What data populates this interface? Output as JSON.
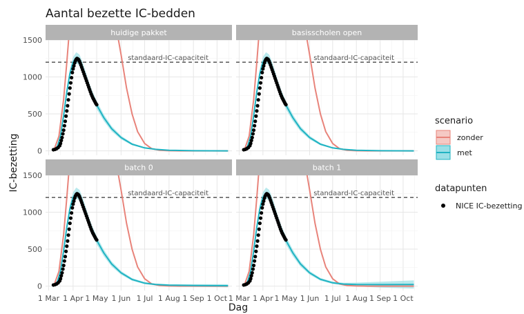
{
  "chart_data": {
    "type": "line",
    "title": "Aantal bezette IC-bedden",
    "xlabel": "Dag",
    "ylabel": "IC-bezetting",
    "xlim": [
      "2020-02-26",
      "2020-10-20"
    ],
    "ylim": [
      -60,
      1500
    ],
    "x_ticks": [
      {
        "date": "2020-03-01",
        "label": "1 Mar"
      },
      {
        "date": "2020-04-01",
        "label": "1 Apr"
      },
      {
        "date": "2020-05-01",
        "label": "1 May"
      },
      {
        "date": "2020-06-01",
        "label": "1 Jun"
      },
      {
        "date": "2020-07-01",
        "label": "1 Jul"
      },
      {
        "date": "2020-08-01",
        "label": "1 Aug"
      },
      {
        "date": "2020-09-01",
        "label": "1 Sep"
      },
      {
        "date": "2020-10-01",
        "label": "1 Oct"
      }
    ],
    "y_ticks": [
      0,
      500,
      1000,
      1500
    ],
    "grid": true,
    "reference_line": {
      "y": 1200,
      "label": "standaard-IC-capaciteit",
      "style": "dashed"
    },
    "legend": {
      "position": "right",
      "scenario_title": "scenario",
      "scenario_items": [
        {
          "name": "zonder",
          "color": "#E8837A"
        },
        {
          "name": "met",
          "color": "#1FB3C2"
        }
      ],
      "points_title": "datapunten",
      "points_items": [
        {
          "name": "NICE IC-bezetting",
          "color": "#000000"
        }
      ]
    },
    "colors": {
      "zonder": "#E8837A",
      "met": "#1FB3C2",
      "band": "#9ADFE6",
      "strip": "#B3B3B3",
      "grid": "#E6E6E6"
    },
    "panels": [
      {
        "title": "huidige pakket",
        "met": [
          [
            "2020-03-08",
            20
          ],
          [
            "2020-03-12",
            60
          ],
          [
            "2020-03-16",
            200
          ],
          [
            "2020-03-20",
            480
          ],
          [
            "2020-03-24",
            800
          ],
          [
            "2020-03-28",
            1050
          ],
          [
            "2020-04-01",
            1200
          ],
          [
            "2020-04-05",
            1260
          ],
          [
            "2020-04-09",
            1230
          ],
          [
            "2020-04-13",
            1130
          ],
          [
            "2020-04-17",
            1000
          ],
          [
            "2020-04-21",
            870
          ],
          [
            "2020-04-25",
            760
          ],
          [
            "2020-05-01",
            620
          ],
          [
            "2020-05-10",
            450
          ],
          [
            "2020-05-20",
            300
          ],
          [
            "2020-06-01",
            180
          ],
          [
            "2020-06-15",
            90
          ],
          [
            "2020-07-01",
            40
          ],
          [
            "2020-07-15",
            20
          ],
          [
            "2020-08-01",
            8
          ],
          [
            "2020-09-01",
            2
          ],
          [
            "2020-10-15",
            0
          ]
        ],
        "band_half_width": [
          10,
          15,
          30,
          40,
          50,
          60,
          70,
          75,
          75,
          75,
          70,
          65,
          60,
          55,
          45,
          35,
          25,
          15,
          10,
          6,
          3,
          2,
          2
        ],
        "zonder": [
          [
            "2020-03-08",
            20
          ],
          [
            "2020-03-14",
            200
          ],
          [
            "2020-03-20",
            700
          ],
          [
            "2020-03-24",
            1200
          ],
          [
            "2020-03-27",
            1600
          ],
          [
            "2020-05-27",
            1600
          ],
          [
            "2020-06-01",
            1300
          ],
          [
            "2020-06-08",
            850
          ],
          [
            "2020-06-15",
            500
          ],
          [
            "2020-06-22",
            260
          ],
          [
            "2020-07-01",
            100
          ],
          [
            "2020-07-10",
            30
          ],
          [
            "2020-07-20",
            8
          ],
          [
            "2020-08-01",
            2
          ],
          [
            "2020-08-15",
            0
          ],
          [
            "2020-10-15",
            0
          ]
        ]
      },
      {
        "title": "basisscholen open",
        "met": [
          [
            "2020-03-08",
            20
          ],
          [
            "2020-03-12",
            60
          ],
          [
            "2020-03-16",
            200
          ],
          [
            "2020-03-20",
            480
          ],
          [
            "2020-03-24",
            800
          ],
          [
            "2020-03-28",
            1050
          ],
          [
            "2020-04-01",
            1200
          ],
          [
            "2020-04-05",
            1260
          ],
          [
            "2020-04-09",
            1230
          ],
          [
            "2020-04-13",
            1130
          ],
          [
            "2020-04-17",
            1000
          ],
          [
            "2020-04-21",
            870
          ],
          [
            "2020-04-25",
            760
          ],
          [
            "2020-05-01",
            620
          ],
          [
            "2020-05-10",
            450
          ],
          [
            "2020-05-20",
            300
          ],
          [
            "2020-06-01",
            180
          ],
          [
            "2020-06-15",
            90
          ],
          [
            "2020-07-01",
            40
          ],
          [
            "2020-07-15",
            20
          ],
          [
            "2020-08-01",
            8
          ],
          [
            "2020-09-01",
            2
          ],
          [
            "2020-10-15",
            0
          ]
        ],
        "band_half_width": [
          10,
          15,
          30,
          40,
          50,
          60,
          70,
          75,
          75,
          75,
          70,
          65,
          60,
          55,
          45,
          35,
          25,
          15,
          10,
          6,
          3,
          2,
          2
        ],
        "zonder": [
          [
            "2020-03-08",
            20
          ],
          [
            "2020-03-14",
            200
          ],
          [
            "2020-03-20",
            700
          ],
          [
            "2020-03-24",
            1200
          ],
          [
            "2020-03-27",
            1600
          ],
          [
            "2020-05-27",
            1600
          ],
          [
            "2020-06-01",
            1300
          ],
          [
            "2020-06-08",
            850
          ],
          [
            "2020-06-15",
            500
          ],
          [
            "2020-06-22",
            260
          ],
          [
            "2020-07-01",
            100
          ],
          [
            "2020-07-10",
            30
          ],
          [
            "2020-07-20",
            8
          ],
          [
            "2020-08-01",
            2
          ],
          [
            "2020-08-15",
            0
          ],
          [
            "2020-10-15",
            0
          ]
        ]
      },
      {
        "title": "batch 0",
        "met": [
          [
            "2020-03-08",
            20
          ],
          [
            "2020-03-12",
            60
          ],
          [
            "2020-03-16",
            200
          ],
          [
            "2020-03-20",
            480
          ],
          [
            "2020-03-24",
            800
          ],
          [
            "2020-03-28",
            1050
          ],
          [
            "2020-04-01",
            1200
          ],
          [
            "2020-04-05",
            1260
          ],
          [
            "2020-04-09",
            1230
          ],
          [
            "2020-04-13",
            1130
          ],
          [
            "2020-04-17",
            1000
          ],
          [
            "2020-04-21",
            870
          ],
          [
            "2020-04-25",
            760
          ],
          [
            "2020-05-01",
            620
          ],
          [
            "2020-05-10",
            450
          ],
          [
            "2020-05-20",
            300
          ],
          [
            "2020-06-01",
            180
          ],
          [
            "2020-06-15",
            90
          ],
          [
            "2020-07-01",
            40
          ],
          [
            "2020-07-15",
            22
          ],
          [
            "2020-08-01",
            12
          ],
          [
            "2020-09-01",
            8
          ],
          [
            "2020-10-15",
            5
          ]
        ],
        "band_half_width": [
          10,
          15,
          30,
          40,
          50,
          60,
          70,
          75,
          75,
          75,
          70,
          65,
          60,
          55,
          45,
          35,
          25,
          18,
          14,
          12,
          14,
          18,
          22
        ],
        "zonder": [
          [
            "2020-03-08",
            20
          ],
          [
            "2020-03-14",
            200
          ],
          [
            "2020-03-20",
            700
          ],
          [
            "2020-03-24",
            1200
          ],
          [
            "2020-03-27",
            1600
          ],
          [
            "2020-05-27",
            1600
          ],
          [
            "2020-06-01",
            1300
          ],
          [
            "2020-06-08",
            850
          ],
          [
            "2020-06-15",
            500
          ],
          [
            "2020-06-22",
            260
          ],
          [
            "2020-07-01",
            100
          ],
          [
            "2020-07-10",
            30
          ],
          [
            "2020-07-20",
            8
          ],
          [
            "2020-08-01",
            2
          ],
          [
            "2020-08-15",
            0
          ],
          [
            "2020-10-15",
            0
          ]
        ]
      },
      {
        "title": "batch 1",
        "met": [
          [
            "2020-03-08",
            20
          ],
          [
            "2020-03-12",
            60
          ],
          [
            "2020-03-16",
            200
          ],
          [
            "2020-03-20",
            480
          ],
          [
            "2020-03-24",
            800
          ],
          [
            "2020-03-28",
            1050
          ],
          [
            "2020-04-01",
            1200
          ],
          [
            "2020-04-05",
            1260
          ],
          [
            "2020-04-09",
            1230
          ],
          [
            "2020-04-13",
            1130
          ],
          [
            "2020-04-17",
            1000
          ],
          [
            "2020-04-21",
            870
          ],
          [
            "2020-04-25",
            760
          ],
          [
            "2020-05-01",
            620
          ],
          [
            "2020-05-10",
            450
          ],
          [
            "2020-05-20",
            300
          ],
          [
            "2020-06-01",
            180
          ],
          [
            "2020-06-15",
            92
          ],
          [
            "2020-07-01",
            45
          ],
          [
            "2020-07-15",
            28
          ],
          [
            "2020-08-01",
            22
          ],
          [
            "2020-09-01",
            20
          ],
          [
            "2020-10-15",
            22
          ]
        ],
        "band_half_width": [
          10,
          15,
          30,
          40,
          50,
          60,
          70,
          75,
          75,
          75,
          70,
          65,
          60,
          55,
          45,
          35,
          25,
          18,
          16,
          18,
          25,
          40,
          55
        ],
        "zonder": [
          [
            "2020-03-08",
            20
          ],
          [
            "2020-03-14",
            200
          ],
          [
            "2020-03-20",
            700
          ],
          [
            "2020-03-24",
            1200
          ],
          [
            "2020-03-27",
            1600
          ],
          [
            "2020-05-27",
            1600
          ],
          [
            "2020-06-01",
            1300
          ],
          [
            "2020-06-08",
            850
          ],
          [
            "2020-06-15",
            500
          ],
          [
            "2020-06-22",
            260
          ],
          [
            "2020-07-01",
            100
          ],
          [
            "2020-07-10",
            30
          ],
          [
            "2020-07-20",
            8
          ],
          [
            "2020-08-01",
            2
          ],
          [
            "2020-08-15",
            0
          ],
          [
            "2020-10-15",
            0
          ]
        ]
      }
    ],
    "nice_points": [
      [
        "2020-03-07",
        15
      ],
      [
        "2020-03-09",
        20
      ],
      [
        "2020-03-11",
        30
      ],
      [
        "2020-03-13",
        45
      ],
      [
        "2020-03-15",
        70
      ],
      [
        "2020-03-16",
        100
      ],
      [
        "2020-03-17",
        140
      ],
      [
        "2020-03-18",
        180
      ],
      [
        "2020-03-19",
        230
      ],
      [
        "2020-03-20",
        280
      ],
      [
        "2020-03-21",
        340
      ],
      [
        "2020-03-22",
        400
      ],
      [
        "2020-03-23",
        470
      ],
      [
        "2020-03-24",
        540
      ],
      [
        "2020-03-25",
        610
      ],
      [
        "2020-03-26",
        690
      ],
      [
        "2020-03-27",
        770
      ],
      [
        "2020-03-28",
        850
      ],
      [
        "2020-03-29",
        920
      ],
      [
        "2020-03-30",
        990
      ],
      [
        "2020-03-31",
        1060
      ],
      [
        "2020-04-01",
        1110
      ],
      [
        "2020-04-02",
        1150
      ],
      [
        "2020-04-03",
        1190
      ],
      [
        "2020-04-04",
        1220
      ],
      [
        "2020-04-05",
        1240
      ],
      [
        "2020-04-06",
        1250
      ],
      [
        "2020-04-07",
        1245
      ],
      [
        "2020-04-08",
        1235
      ],
      [
        "2020-04-09",
        1215
      ],
      [
        "2020-04-10",
        1190
      ],
      [
        "2020-04-11",
        1160
      ],
      [
        "2020-04-12",
        1130
      ],
      [
        "2020-04-13",
        1100
      ],
      [
        "2020-04-14",
        1070
      ],
      [
        "2020-04-15",
        1040
      ],
      [
        "2020-04-16",
        1010
      ],
      [
        "2020-04-17",
        980
      ],
      [
        "2020-04-18",
        950
      ],
      [
        "2020-04-19",
        920
      ],
      [
        "2020-04-20",
        890
      ],
      [
        "2020-04-21",
        860
      ],
      [
        "2020-04-22",
        830
      ],
      [
        "2020-04-23",
        800
      ],
      [
        "2020-04-24",
        770
      ],
      [
        "2020-04-25",
        745
      ],
      [
        "2020-04-26",
        720
      ],
      [
        "2020-04-27",
        700
      ],
      [
        "2020-04-28",
        680
      ],
      [
        "2020-04-29",
        660
      ],
      [
        "2020-04-30",
        640
      ],
      [
        "2020-05-01",
        625
      ]
    ]
  }
}
